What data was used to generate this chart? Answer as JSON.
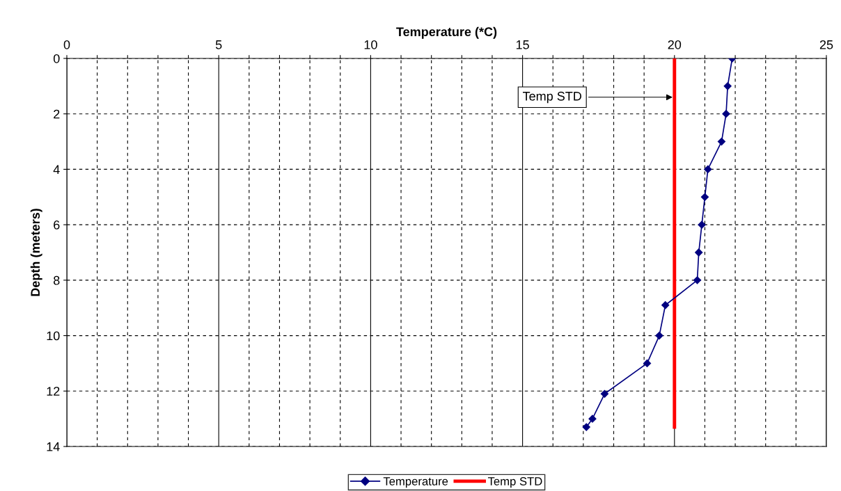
{
  "chart_data": {
    "type": "line",
    "xlabel": "Temperature (*C)",
    "ylabel": "Depth (meters)",
    "xlim": [
      0,
      25
    ],
    "ylim": [
      14,
      0
    ],
    "xticks": [
      0,
      {
        "value": 1,
        "label": null
      },
      {
        "value": 2,
        "label": null
      },
      {
        "value": 3,
        "label": null
      },
      {
        "value": 4,
        "label": null
      },
      5,
      {
        "value": 6,
        "label": null
      },
      {
        "value": 7,
        "label": null
      },
      {
        "value": 8,
        "label": null
      },
      {
        "value": 9,
        "label": null
      },
      10,
      {
        "value": 11,
        "label": null
      },
      {
        "value": 12,
        "label": null
      },
      {
        "value": 13,
        "label": null
      },
      {
        "value": 14,
        "label": null
      },
      15,
      {
        "value": 16,
        "label": null
      },
      {
        "value": 17,
        "label": null
      },
      {
        "value": 18,
        "label": null
      },
      {
        "value": 19,
        "label": null
      },
      20,
      {
        "value": 21,
        "label": null
      },
      {
        "value": 22,
        "label": null
      },
      {
        "value": 23,
        "label": null
      },
      {
        "value": 24,
        "label": null
      },
      25
    ],
    "yticks": [
      0,
      2,
      4,
      6,
      8,
      10,
      12,
      14
    ],
    "grid": true,
    "legend": "bottom",
    "series": [
      {
        "name": "Temperature",
        "color": "#000080",
        "marker": "diamond",
        "x": [
          21.9,
          21.75,
          21.7,
          21.55,
          21.1,
          21.0,
          20.9,
          20.8,
          20.75,
          19.7,
          19.5,
          19.1,
          17.7,
          17.3,
          17.1
        ],
        "values": [
          0,
          1,
          2,
          3,
          4,
          5,
          6,
          7,
          8,
          8.9,
          10,
          11,
          12.1,
          13,
          13.3
        ]
      },
      {
        "name": "Temp STD",
        "color": "#ff0000",
        "marker": "none",
        "x": [
          20,
          20
        ],
        "values": [
          0,
          13.3
        ]
      }
    ],
    "annotations": [
      {
        "text": "Temp STD",
        "x": 20,
        "y": 1.4
      }
    ]
  }
}
